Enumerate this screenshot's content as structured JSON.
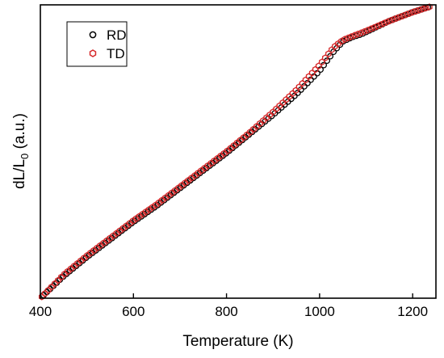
{
  "chart_data": {
    "type": "scatter",
    "xlabel": "Temperature (K)",
    "ylabel_main": "dL/L",
    "ylabel_sub": "0",
    "ylabel_tail": " (a.u.)",
    "xlim": [
      400,
      1250
    ],
    "ylim": [
      0,
      1
    ],
    "xticks": [
      "400",
      "600",
      "800",
      "1000",
      "1200"
    ],
    "grid": false,
    "legend_position": "top-left",
    "series": [
      {
        "name": "RD",
        "marker": "circle",
        "color": "#000000",
        "x": [
          400,
          450,
          500,
          550,
          600,
          650,
          700,
          750,
          800,
          850,
          900,
          950,
          1000,
          1030,
          1050,
          1070,
          1090,
          1110,
          1150,
          1200,
          1250
        ],
        "y": [
          0.0,
          0.075,
          0.14,
          0.2,
          0.26,
          0.315,
          0.375,
          0.435,
          0.495,
          0.56,
          0.625,
          0.695,
          0.775,
          0.84,
          0.875,
          0.89,
          0.9,
          0.915,
          0.945,
          0.975,
          1.0
        ]
      },
      {
        "name": "TD",
        "marker": "hexagon",
        "color": "#d62728",
        "x": [
          400,
          450,
          500,
          550,
          600,
          650,
          700,
          750,
          800,
          850,
          900,
          950,
          1000,
          1030,
          1050,
          1070,
          1090,
          1110,
          1150,
          1200,
          1250
        ],
        "y": [
          0.0,
          0.08,
          0.145,
          0.205,
          0.265,
          0.32,
          0.38,
          0.44,
          0.5,
          0.565,
          0.635,
          0.71,
          0.795,
          0.855,
          0.88,
          0.893,
          0.905,
          0.918,
          0.945,
          0.975,
          1.0
        ]
      }
    ]
  }
}
